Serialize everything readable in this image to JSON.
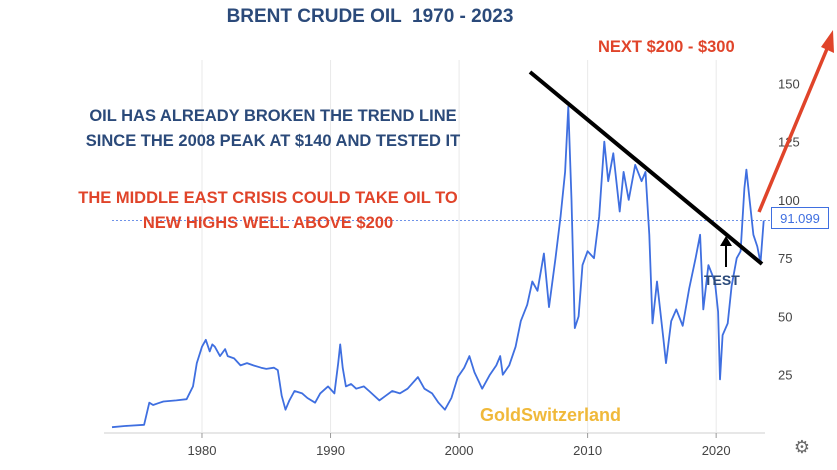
{
  "title": "BRENT CRUDE OIL  1970 - 2023",
  "annotations": {
    "blue_line1": "OIL HAS ALREADY BROKEN THE TREND LINE",
    "blue_line2": "SINCE THE 2008 PEAK AT $140 AND TESTED IT",
    "red_line1": "THE MIDDLE EAST CRISIS COULD TAKE OIL TO",
    "red_line2": "NEW HIGHS WELL ABOVE $200",
    "next": "NEXT $200 - $300",
    "test": "TEST"
  },
  "watermark": "GoldSwitzerland",
  "last_value_label": "91.099",
  "settings_icon": "gear-icon",
  "colors": {
    "series": "#3f6fe0",
    "title": "#2b4a7a",
    "red": "#e0442a",
    "watermark": "#f0b93a",
    "trendline": "#000000"
  },
  "chart_data": {
    "type": "line",
    "title": "BRENT CRUDE OIL  1970 - 2023",
    "x_ticks": [
      "1980",
      "1990",
      "2000",
      "2010",
      "2020"
    ],
    "y_ticks": [
      "25",
      "50",
      "75",
      "100",
      "125",
      "150"
    ],
    "xlim": [
      1973,
      2023.8
    ],
    "ylim": [
      0,
      160
    ],
    "grid": "vertical",
    "series": [
      {
        "points": [
          [
            1973.0,
            2.5
          ],
          [
            1974.0,
            3.0
          ],
          [
            1975.5,
            3.5
          ],
          [
            1975.9,
            13.0
          ],
          [
            1976.2,
            12.0
          ],
          [
            1976.6,
            12.8
          ],
          [
            1977.0,
            13.5
          ],
          [
            1978.0,
            14.0
          ],
          [
            1978.8,
            14.5
          ],
          [
            1979.3,
            20.0
          ],
          [
            1979.6,
            30.0
          ],
          [
            1980.0,
            37.0
          ],
          [
            1980.3,
            40.0
          ],
          [
            1980.6,
            35.0
          ],
          [
            1980.8,
            38.0
          ],
          [
            1981.0,
            37.0
          ],
          [
            1981.4,
            33.0
          ],
          [
            1981.8,
            36.0
          ],
          [
            1982.0,
            33.0
          ],
          [
            1982.5,
            32.0
          ],
          [
            1983.0,
            29.0
          ],
          [
            1983.5,
            30.0
          ],
          [
            1984.0,
            29.0
          ],
          [
            1984.6,
            28.0
          ],
          [
            1985.0,
            27.5
          ],
          [
            1985.6,
            28.0
          ],
          [
            1985.9,
            27.0
          ],
          [
            1986.2,
            16.0
          ],
          [
            1986.5,
            10.0
          ],
          [
            1986.8,
            14.0
          ],
          [
            1987.2,
            18.0
          ],
          [
            1987.8,
            17.0
          ],
          [
            1988.2,
            15.0
          ],
          [
            1988.8,
            13.0
          ],
          [
            1989.2,
            17.0
          ],
          [
            1989.8,
            20.0
          ],
          [
            1990.3,
            17.0
          ],
          [
            1990.6,
            30.0
          ],
          [
            1990.75,
            38.0
          ],
          [
            1990.95,
            28.0
          ],
          [
            1991.2,
            20.0
          ],
          [
            1991.6,
            21.0
          ],
          [
            1992.0,
            19.0
          ],
          [
            1992.6,
            20.0
          ],
          [
            1993.0,
            18.0
          ],
          [
            1993.8,
            14.0
          ],
          [
            1994.3,
            16.0
          ],
          [
            1994.8,
            18.0
          ],
          [
            1995.4,
            17.0
          ],
          [
            1996.0,
            19.0
          ],
          [
            1996.8,
            24.0
          ],
          [
            1997.3,
            19.0
          ],
          [
            1997.9,
            17.0
          ],
          [
            1998.4,
            13.0
          ],
          [
            1998.9,
            10.0
          ],
          [
            1999.4,
            15.0
          ],
          [
            1999.9,
            24.0
          ],
          [
            2000.4,
            28.0
          ],
          [
            2000.8,
            33.0
          ],
          [
            2001.2,
            26.0
          ],
          [
            2001.8,
            19.0
          ],
          [
            2002.4,
            25.0
          ],
          [
            2002.9,
            29.0
          ],
          [
            2003.2,
            33.0
          ],
          [
            2003.4,
            25.0
          ],
          [
            2003.9,
            29.0
          ],
          [
            2004.4,
            37.0
          ],
          [
            2004.8,
            48.0
          ],
          [
            2005.3,
            55.0
          ],
          [
            2005.7,
            65.0
          ],
          [
            2006.1,
            61.0
          ],
          [
            2006.6,
            77.0
          ],
          [
            2007.0,
            54.0
          ],
          [
            2007.5,
            75.0
          ],
          [
            2007.9,
            93.0
          ],
          [
            2008.25,
            112.0
          ],
          [
            2008.5,
            140.0
          ],
          [
            2008.75,
            100.0
          ],
          [
            2009.0,
            45.0
          ],
          [
            2009.3,
            50.0
          ],
          [
            2009.6,
            72.0
          ],
          [
            2010.0,
            78.0
          ],
          [
            2010.5,
            75.0
          ],
          [
            2010.9,
            93.0
          ],
          [
            2011.3,
            125.0
          ],
          [
            2011.6,
            108.0
          ],
          [
            2012.0,
            120.0
          ],
          [
            2012.5,
            95.0
          ],
          [
            2012.8,
            112.0
          ],
          [
            2013.2,
            100.0
          ],
          [
            2013.7,
            115.0
          ],
          [
            2014.2,
            108.0
          ],
          [
            2014.5,
            112.0
          ],
          [
            2014.8,
            85.0
          ],
          [
            2015.05,
            47.0
          ],
          [
            2015.4,
            65.0
          ],
          [
            2015.9,
            40.0
          ],
          [
            2016.1,
            30.0
          ],
          [
            2016.5,
            48.0
          ],
          [
            2016.9,
            53.0
          ],
          [
            2017.4,
            46.0
          ],
          [
            2017.9,
            62.0
          ],
          [
            2018.4,
            75.0
          ],
          [
            2018.75,
            85.0
          ],
          [
            2019.0,
            53.0
          ],
          [
            2019.4,
            72.0
          ],
          [
            2019.9,
            65.0
          ],
          [
            2020.15,
            52.0
          ],
          [
            2020.3,
            23.0
          ],
          [
            2020.5,
            42.0
          ],
          [
            2020.9,
            47.0
          ],
          [
            2021.2,
            63.0
          ],
          [
            2021.6,
            75.0
          ],
          [
            2021.9,
            78.0
          ],
          [
            2022.2,
            105.0
          ],
          [
            2022.35,
            113.0
          ],
          [
            2022.6,
            100.0
          ],
          [
            2022.9,
            85.0
          ],
          [
            2023.2,
            80.0
          ],
          [
            2023.45,
            73.0
          ],
          [
            2023.7,
            91.1
          ]
        ]
      }
    ],
    "last_value": 91.099
  }
}
